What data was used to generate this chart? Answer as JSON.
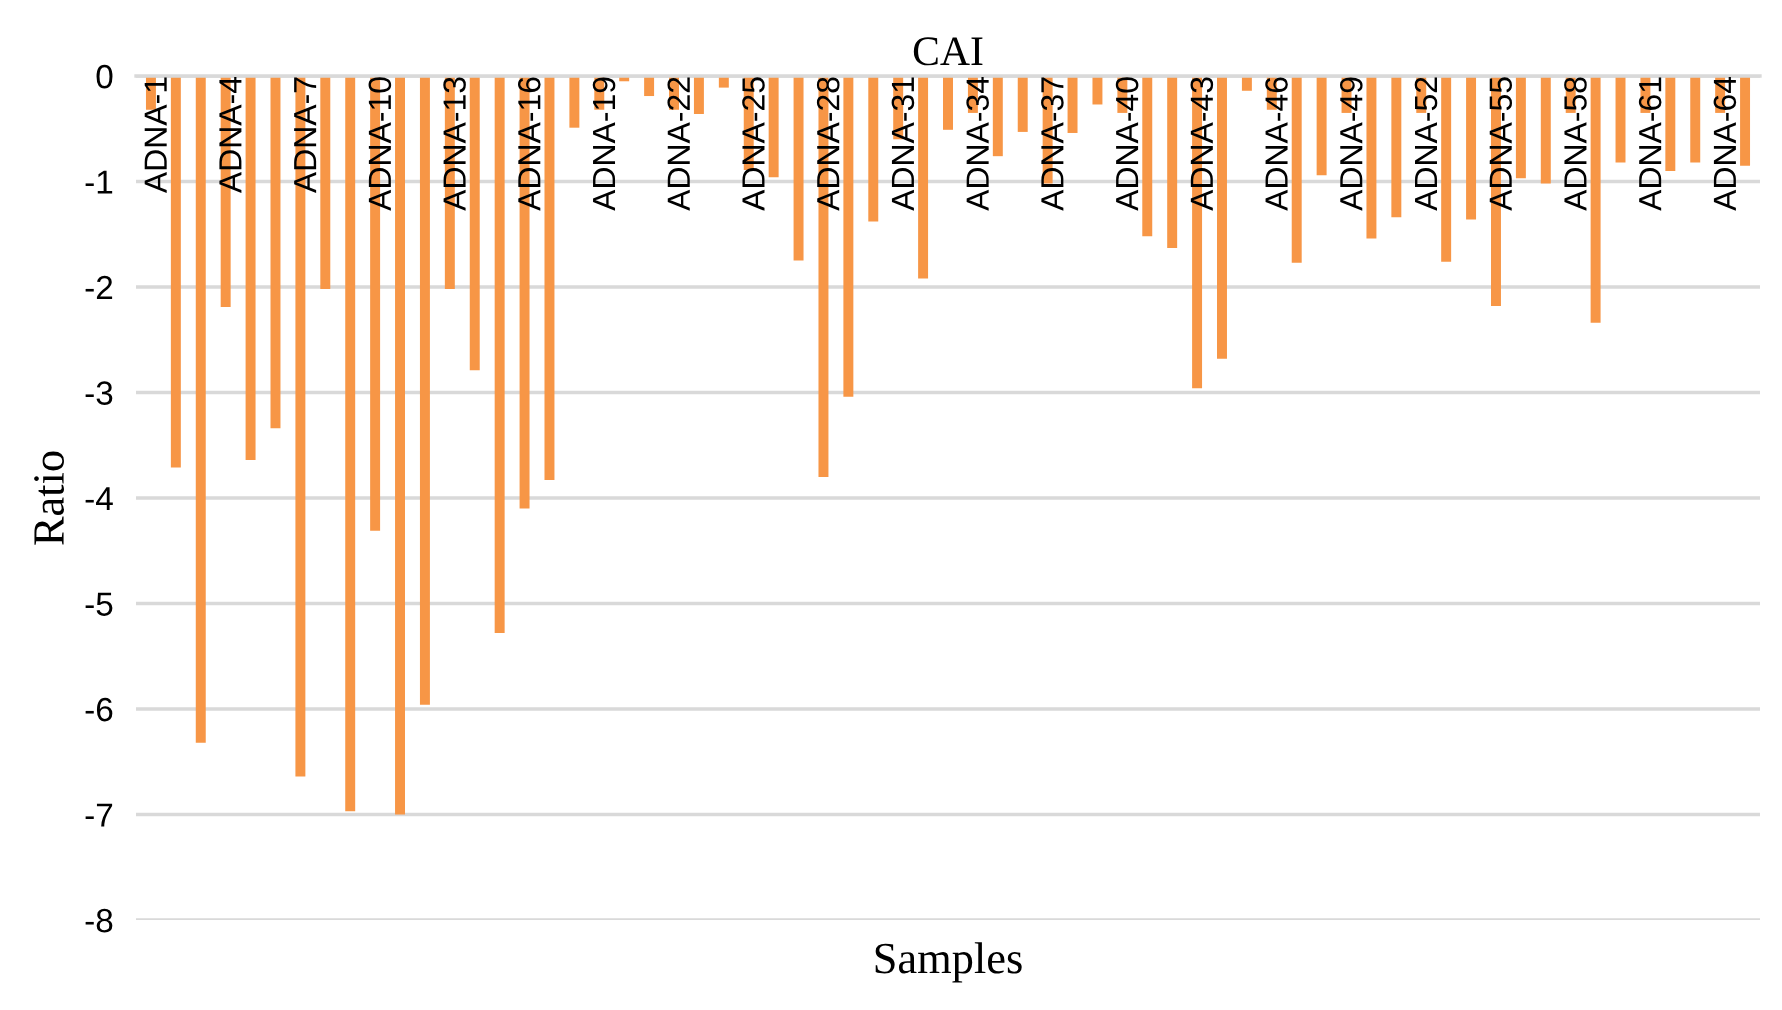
{
  "chart_data": {
    "type": "bar",
    "title": "CAI",
    "xlabel": "Samples",
    "ylabel": "Ratio",
    "categories": [
      "ADNA-1",
      null,
      null,
      "ADNA-4",
      null,
      null,
      "ADNA-7",
      null,
      null,
      "ADNA-10",
      null,
      null,
      "ADNA-13",
      null,
      null,
      "ADNA-16",
      null,
      null,
      "ADNA-19",
      null,
      null,
      "ADNA-22",
      null,
      null,
      "ADNA-25",
      null,
      null,
      "ADNA-28",
      null,
      null,
      "ADNA-31",
      null,
      null,
      "ADNA-34",
      null,
      null,
      "ADNA-37",
      null,
      null,
      "ADNA-40",
      null,
      null,
      "ADNA-43",
      null,
      null,
      "ADNA-46",
      null,
      null,
      "ADNA-49",
      null,
      null,
      "ADNA-52",
      null,
      null,
      "ADNA-55",
      null,
      null,
      "ADNA-58",
      null,
      null,
      "ADNA-61",
      null,
      null,
      "ADNA-64",
      null
    ],
    "values": [
      -0.32,
      -3.71,
      -6.32,
      -2.19,
      -3.64,
      -3.34,
      -6.64,
      -2.02,
      -6.97,
      -4.31,
      -7.0,
      -5.96,
      -2.02,
      -2.79,
      -5.28,
      -4.1,
      -3.83,
      -0.49,
      -0.32,
      -0.05,
      -0.19,
      -0.32,
      -0.36,
      -0.11,
      -0.89,
      -0.96,
      -1.75,
      -3.8,
      -3.04,
      -1.38,
      -0.6,
      -1.92,
      -0.51,
      -0.35,
      -0.76,
      -0.53,
      -1.02,
      -0.54,
      -0.27,
      -0.35,
      -1.52,
      -1.63,
      -2.96,
      -2.68,
      -0.14,
      -0.32,
      -1.77,
      -0.94,
      -0.35,
      -1.54,
      -1.34,
      -0.35,
      -1.76,
      -1.36,
      -2.18,
      -0.97,
      -1.02,
      -0.35,
      -2.34,
      -0.82,
      -0.35,
      -0.9,
      -0.82,
      -0.35,
      -0.85
    ],
    "color": "#f79646",
    "ylim": [
      -8,
      0
    ],
    "yticks": [
      {
        "value": -8,
        "label": "-8"
      },
      {
        "value": -7,
        "label": "-7"
      },
      {
        "value": -6,
        "label": "-6"
      },
      {
        "value": -5,
        "label": "-5"
      },
      {
        "value": -4,
        "label": "-4"
      },
      {
        "value": -3,
        "label": "-3"
      },
      {
        "value": -2,
        "label": "-2"
      },
      {
        "value": -1,
        "label": "-1"
      },
      0
    ],
    "grid": "y"
  }
}
